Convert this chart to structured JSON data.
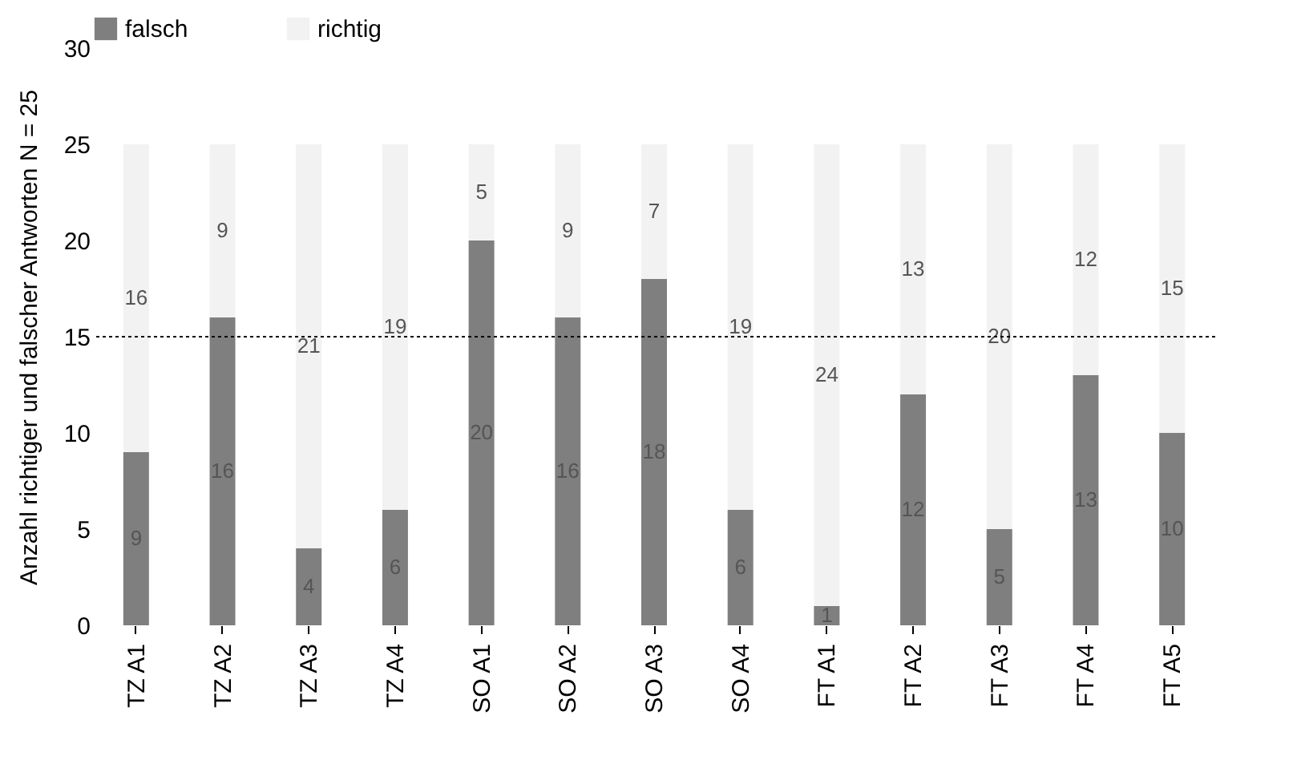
{
  "chart_data": {
    "type": "bar",
    "stacked": true,
    "ylabel": "Anzahl richtiger und falscher Antworten N = 25",
    "categories": [
      "TZ A1",
      "TZ A2",
      "TZ A3",
      "TZ A4",
      "SO A1",
      "SO A2",
      "SO A3",
      "SO A4",
      "FT A1",
      "FT A2",
      "FT A3",
      "FT A4",
      "FT A5"
    ],
    "series": [
      {
        "name": "falsch",
        "color": "#7f7f7f",
        "values": [
          9,
          16,
          4,
          6,
          20,
          16,
          18,
          6,
          1,
          12,
          5,
          13,
          10
        ]
      },
      {
        "name": "richtig",
        "color": "#f2f2f2",
        "values": [
          16,
          9,
          21,
          19,
          5,
          9,
          7,
          19,
          24,
          13,
          20,
          12,
          15
        ]
      }
    ],
    "ylim": [
      0,
      30
    ],
    "yticks": [
      0,
      5,
      10,
      15,
      20,
      25,
      30
    ],
    "grid": false,
    "legend": "top",
    "data_labels": true,
    "ref_lines": [
      {
        "axis": "y",
        "value": 15,
        "color": "#000000",
        "line_style": "dotted"
      }
    ]
  }
}
